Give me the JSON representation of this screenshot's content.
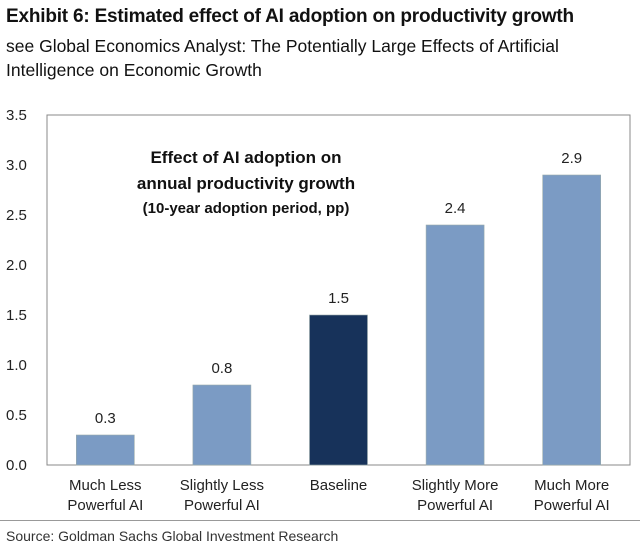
{
  "header": {
    "title": "Exhibit 6: Estimated effect of AI adoption on productivity growth",
    "subtitle": "see Global Economics Analyst: The Potentially Large Effects of Artificial Intelligence on Economic Growth"
  },
  "footer": {
    "source": "Source: Goldman Sachs Global Investment Research"
  },
  "colors": {
    "bar": "#7b9bc4",
    "highlight": "#17325a",
    "axis": "#888888"
  },
  "chart_data": {
    "type": "bar",
    "title_lines": [
      "Effect of AI adoption on",
      "annual productivity growth",
      "(10-year adoption period, pp)"
    ],
    "categories": [
      [
        "Much Less",
        "Powerful AI"
      ],
      [
        "Slightly Less",
        "Powerful AI"
      ],
      [
        "Baseline"
      ],
      [
        "Slightly More",
        "Powerful AI"
      ],
      [
        "Much More",
        "Powerful AI"
      ]
    ],
    "values": [
      0.3,
      0.8,
      1.5,
      2.4,
      2.9
    ],
    "labels": [
      "0.3",
      "0.8",
      "1.5",
      "2.4",
      "2.9"
    ],
    "highlight_index": 2,
    "yticks": [
      "0.0",
      "0.5",
      "1.0",
      "1.5",
      "2.0",
      "2.5",
      "3.0",
      "3.5"
    ],
    "ylim": [
      0,
      3.5
    ],
    "xlabel": "",
    "ylabel": "",
    "grid": false
  }
}
